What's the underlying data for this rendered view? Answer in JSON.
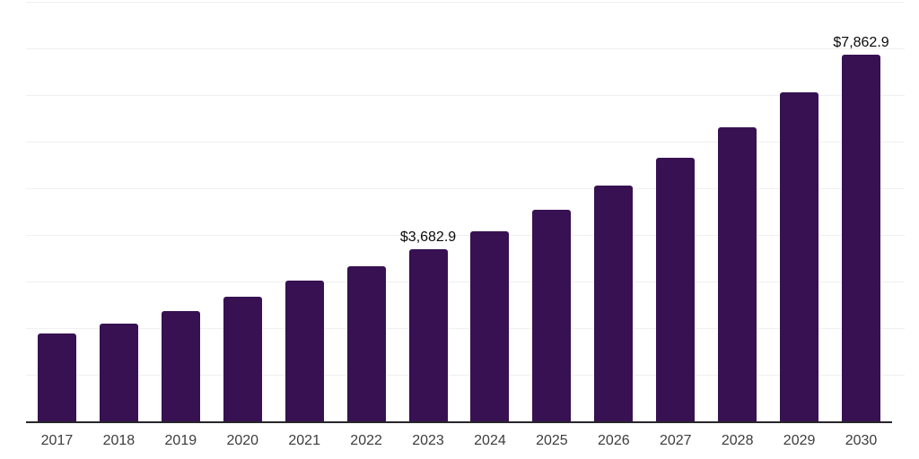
{
  "chart_data": {
    "type": "bar",
    "title": "",
    "xlabel": "",
    "ylabel": "",
    "categories": [
      "2017",
      "2018",
      "2019",
      "2020",
      "2021",
      "2022",
      "2023",
      "2024",
      "2025",
      "2026",
      "2027",
      "2028",
      "2029",
      "2030"
    ],
    "values": [
      1880,
      2090,
      2360,
      2665,
      3010,
      3320,
      3682.9,
      4085,
      4545,
      5060,
      5655,
      6310,
      7060,
      7862.9
    ],
    "point_labels": [
      {
        "category": "2023",
        "text": "$3,682.9"
      },
      {
        "category": "2030",
        "text": "$7,862.9"
      }
    ],
    "ylim": [
      0,
      9000
    ],
    "gridline_interval": 1000,
    "grid": true,
    "legend": false,
    "y_axis_labels_visible": false,
    "colors": {
      "bar": "#371151",
      "gridline": "#f0f0f0",
      "axis_line": "#26262b",
      "tick_label": "#3d3d3d",
      "data_label": "#0a0a0a",
      "background": "#ffffff"
    }
  }
}
